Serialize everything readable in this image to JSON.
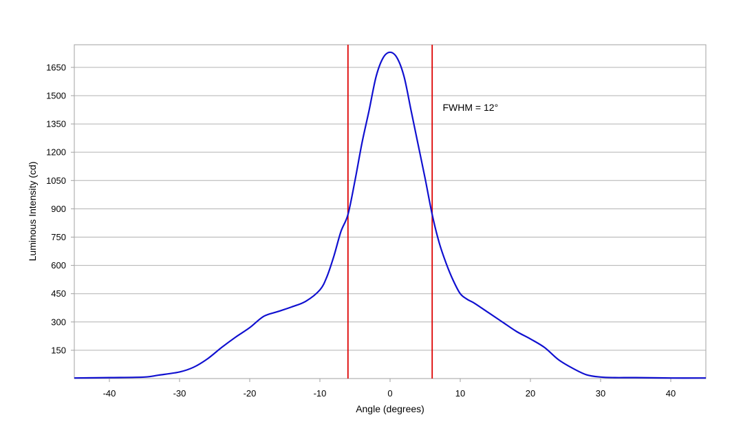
{
  "chart_data": {
    "type": "line",
    "title": "",
    "xlabel": "Angle (degrees)",
    "ylabel": "Luminous Intensity (cd)",
    "xlim": [
      -45,
      45
    ],
    "ylim": [
      0,
      1770
    ],
    "xticks": [
      -40,
      -30,
      -20,
      -10,
      0,
      10,
      20,
      30,
      40
    ],
    "xtick_labels": [
      "-40",
      "-30",
      "-20",
      "-10",
      "0",
      "10",
      "20",
      "30",
      "40"
    ],
    "yticks": [
      150,
      300,
      450,
      600,
      750,
      900,
      1050,
      1200,
      1350,
      1500,
      1650
    ],
    "ytick_labels": [
      "150",
      "300",
      "450",
      "600",
      "750",
      "900",
      "1050",
      "1200",
      "1350",
      "1500",
      "1650"
    ],
    "grid": "horizontal",
    "series": [
      {
        "name": "",
        "color": "#1010d0",
        "x": [
          -45,
          -40,
          -35,
          -33,
          -30,
          -28,
          -26,
          -24,
          -22,
          -20,
          -18,
          -16,
          -14,
          -12,
          -10,
          -9,
          -8,
          -7,
          -6,
          -5,
          -4,
          -3,
          -2,
          -1,
          0,
          1,
          2,
          3,
          4,
          5,
          6,
          7,
          8,
          9,
          10,
          11,
          12,
          14,
          16,
          18,
          20,
          22,
          24,
          26,
          28,
          30,
          32,
          35,
          40,
          45
        ],
        "y": [
          3,
          5,
          8,
          18,
          35,
          60,
          105,
          165,
          220,
          270,
          330,
          355,
          380,
          410,
          470,
          540,
          650,
          780,
          870,
          1050,
          1250,
          1420,
          1600,
          1700,
          1730,
          1700,
          1600,
          1420,
          1240,
          1060,
          870,
          720,
          610,
          520,
          450,
          420,
          400,
          350,
          300,
          250,
          210,
          165,
          100,
          55,
          20,
          8,
          5,
          5,
          3,
          3
        ]
      }
    ],
    "vlines": [
      {
        "x": -6,
        "color": "#dd0000"
      },
      {
        "x": 6,
        "color": "#dd0000"
      }
    ],
    "annotations": [
      {
        "text": "FWHM = 12°",
        "x": 7.5,
        "y": 1420
      }
    ]
  }
}
